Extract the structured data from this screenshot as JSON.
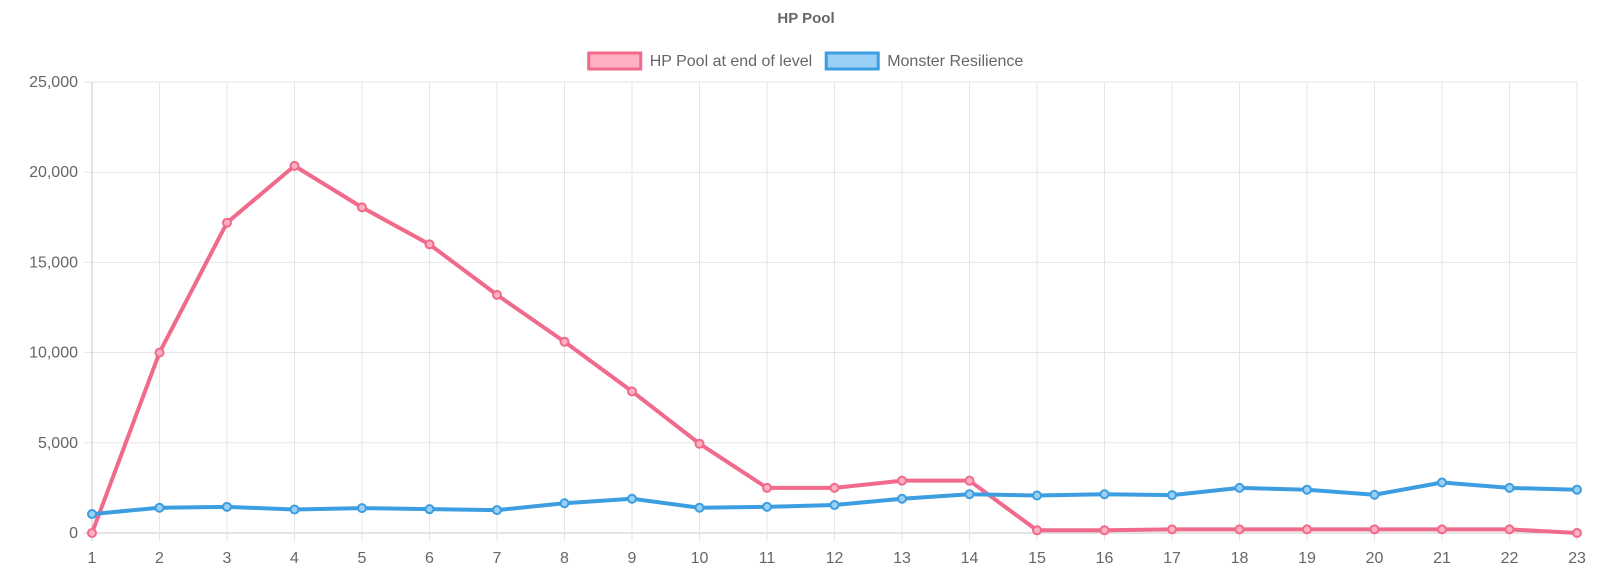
{
  "chart_data": {
    "type": "line",
    "title": "HP Pool",
    "categories": [
      "1",
      "2",
      "3",
      "4",
      "5",
      "6",
      "7",
      "8",
      "9",
      "10",
      "11",
      "12",
      "13",
      "14",
      "15",
      "16",
      "17",
      "18",
      "19",
      "20",
      "21",
      "22",
      "23"
    ],
    "series": [
      {
        "name": "HP Pool at end of level",
        "color": "#f06a8b",
        "fill": "#ffb1c1",
        "values": [
          0,
          10000,
          17200,
          20350,
          18050,
          16000,
          13200,
          10600,
          7850,
          4950,
          2500,
          2500,
          2900,
          2900,
          150,
          150,
          200,
          200,
          200,
          200,
          200,
          200,
          0
        ]
      },
      {
        "name": "Monster Resilience",
        "color": "#3c9ee0",
        "fill": "#9ad0f5",
        "values": [
          1050,
          1400,
          1450,
          1300,
          1380,
          1320,
          1270,
          1650,
          1900,
          1400,
          1450,
          1550,
          1900,
          2150,
          2080,
          2150,
          2100,
          2500,
          2400,
          2120,
          2800,
          2500,
          2400
        ]
      }
    ],
    "y_ticks": [
      "0",
      "5,000",
      "10,000",
      "15,000",
      "20,000",
      "25,000"
    ],
    "ylim": [
      0,
      25000
    ],
    "grid": true,
    "legend_position": "top-center"
  }
}
